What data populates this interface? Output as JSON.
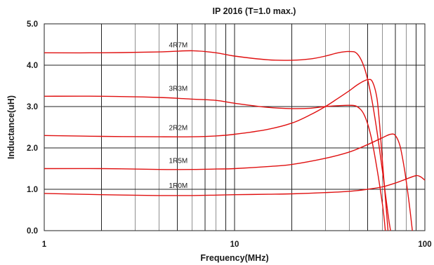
{
  "chart_data": {
    "type": "line",
    "title": "IP 2016 (T=1.0 max.)",
    "xlabel": "Frequency(MHz)",
    "ylabel": "Inductance(uH)",
    "x_scale": "log",
    "xlim": [
      1,
      100
    ],
    "ylim": [
      0,
      5
    ],
    "grid": true,
    "x_tick_labels": [
      "1",
      "10",
      "100"
    ],
    "y_tick_labels": [
      "0.0",
      "1.0",
      "2.0",
      "3.0",
      "4.0",
      "5.0"
    ],
    "line_color": "#e01010",
    "series": [
      {
        "name": "4R7M",
        "points": [
          [
            1,
            4.3
          ],
          [
            2,
            4.3
          ],
          [
            4,
            4.32
          ],
          [
            6,
            4.35
          ],
          [
            8,
            4.3
          ],
          [
            10,
            4.22
          ],
          [
            15,
            4.13
          ],
          [
            20,
            4.12
          ],
          [
            25,
            4.15
          ],
          [
            30,
            4.22
          ],
          [
            35,
            4.3
          ],
          [
            40,
            4.33
          ],
          [
            44,
            4.28
          ],
          [
            48,
            3.95
          ],
          [
            52,
            3.3
          ],
          [
            56,
            2.4
          ],
          [
            60,
            1.4
          ],
          [
            64,
            0.4
          ],
          [
            66,
            0.0
          ]
        ]
      },
      {
        "name": "3R3M",
        "points": [
          [
            1,
            3.25
          ],
          [
            2,
            3.25
          ],
          [
            4,
            3.22
          ],
          [
            6,
            3.18
          ],
          [
            8,
            3.15
          ],
          [
            10,
            3.08
          ],
          [
            15,
            2.98
          ],
          [
            20,
            2.95
          ],
          [
            25,
            2.96
          ],
          [
            30,
            3.0
          ],
          [
            35,
            3.02
          ],
          [
            40,
            3.03
          ],
          [
            44,
            3.0
          ],
          [
            48,
            2.8
          ],
          [
            52,
            2.3
          ],
          [
            56,
            1.5
          ],
          [
            60,
            0.6
          ],
          [
            62,
            0.0
          ]
        ]
      },
      {
        "name": "2R2M",
        "points": [
          [
            1,
            2.3
          ],
          [
            2,
            2.28
          ],
          [
            4,
            2.27
          ],
          [
            6,
            2.27
          ],
          [
            8,
            2.29
          ],
          [
            10,
            2.33
          ],
          [
            15,
            2.45
          ],
          [
            20,
            2.6
          ],
          [
            25,
            2.8
          ],
          [
            30,
            3.0
          ],
          [
            35,
            3.2
          ],
          [
            40,
            3.38
          ],
          [
            45,
            3.55
          ],
          [
            50,
            3.65
          ],
          [
            53,
            3.6
          ],
          [
            56,
            3.2
          ],
          [
            58,
            2.5
          ],
          [
            60,
            1.6
          ],
          [
            62,
            0.8
          ],
          [
            64,
            0.0
          ]
        ]
      },
      {
        "name": "1R5M",
        "points": [
          [
            1,
            1.5
          ],
          [
            2,
            1.5
          ],
          [
            4,
            1.48
          ],
          [
            6,
            1.48
          ],
          [
            8,
            1.49
          ],
          [
            10,
            1.5
          ],
          [
            15,
            1.55
          ],
          [
            20,
            1.6
          ],
          [
            30,
            1.75
          ],
          [
            40,
            1.9
          ],
          [
            50,
            2.08
          ],
          [
            60,
            2.25
          ],
          [
            66,
            2.33
          ],
          [
            70,
            2.3
          ],
          [
            74,
            2.05
          ],
          [
            78,
            1.5
          ],
          [
            82,
            0.8
          ],
          [
            86,
            0.0
          ]
        ]
      },
      {
        "name": "1R0M",
        "points": [
          [
            1,
            0.9
          ],
          [
            2,
            0.87
          ],
          [
            4,
            0.85
          ],
          [
            6,
            0.85
          ],
          [
            8,
            0.86
          ],
          [
            10,
            0.87
          ],
          [
            15,
            0.88
          ],
          [
            20,
            0.89
          ],
          [
            30,
            0.92
          ],
          [
            40,
            0.95
          ],
          [
            50,
            1.0
          ],
          [
            60,
            1.06
          ],
          [
            70,
            1.15
          ],
          [
            80,
            1.25
          ],
          [
            90,
            1.33
          ],
          [
            95,
            1.3
          ],
          [
            100,
            1.22
          ]
        ]
      }
    ]
  }
}
